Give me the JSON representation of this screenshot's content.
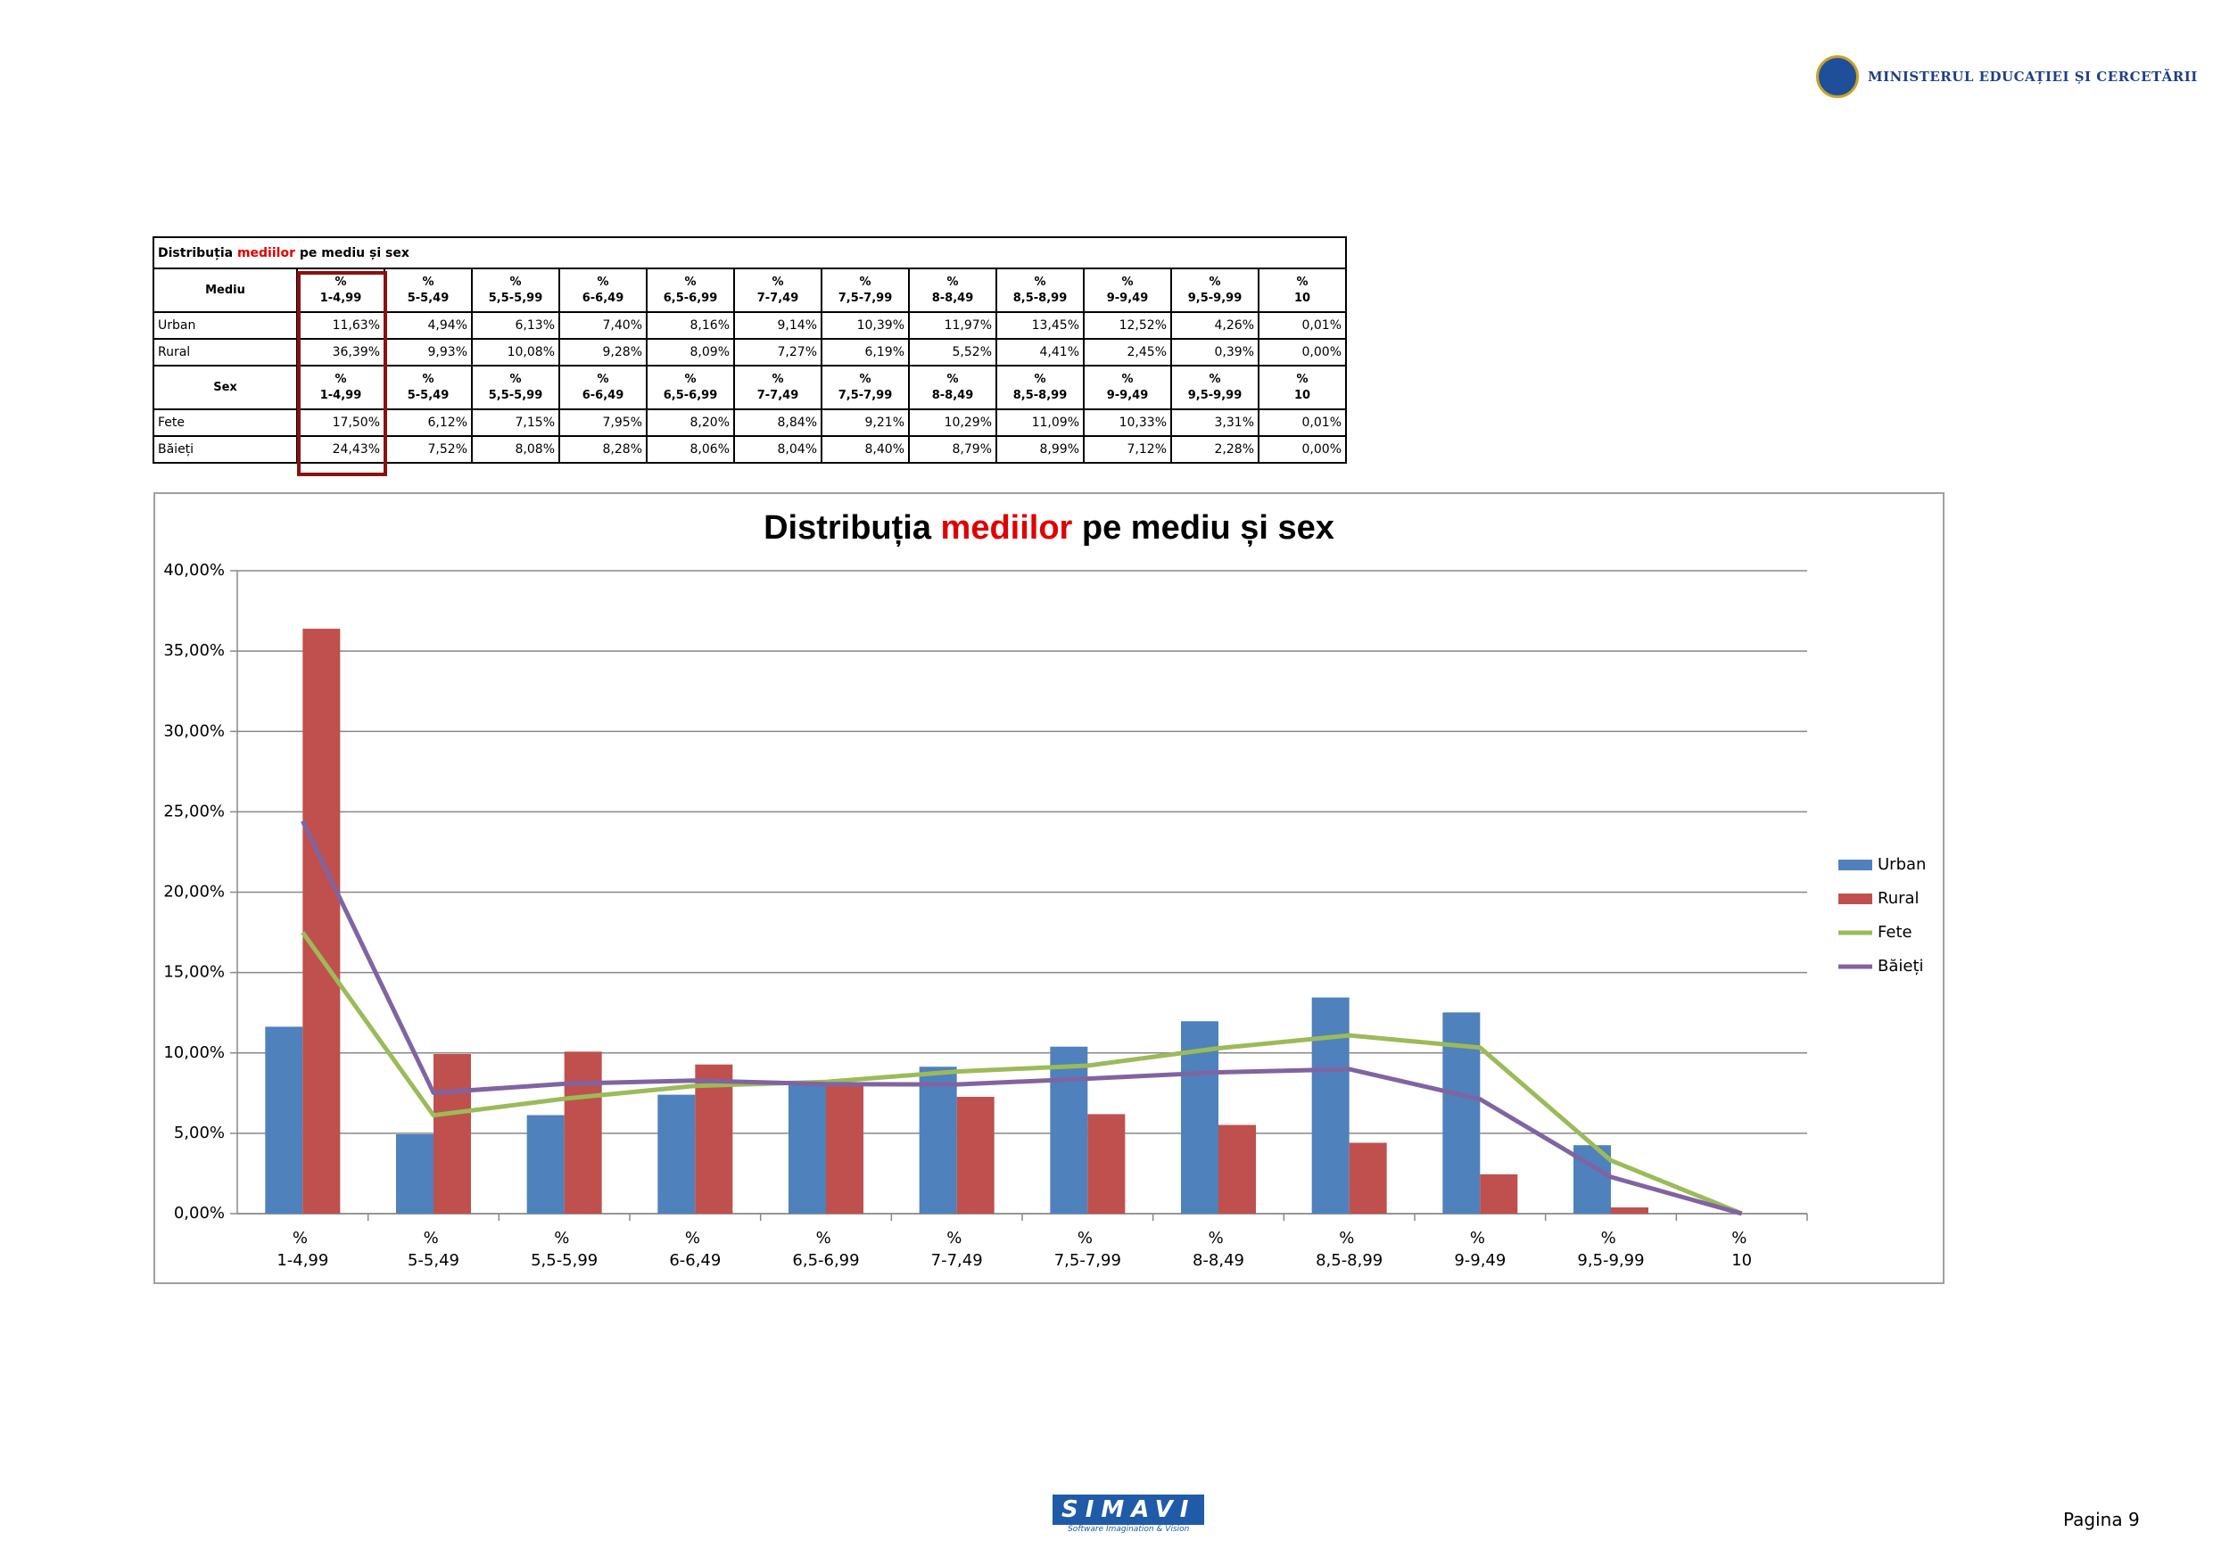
{
  "header": {
    "ministry": "MINISTERUL EDUCAȚIEI ȘI CERCETĂRII"
  },
  "table": {
    "title": {
      "before": "Distribuția",
      "highlight": "mediilor",
      "after": "pe mediu și sex"
    },
    "groups": [
      {
        "label": "Mediu",
        "rows": [
          [
            "11,63%",
            "4,94%",
            "6,13%",
            "7,40%",
            "8,16%",
            "9,14%",
            "10,39%",
            "11,97%",
            "13,45%",
            "12,52%",
            "4,26%",
            "0,01%"
          ],
          [
            "36,39%",
            "9,93%",
            "10,08%",
            "9,28%",
            "8,09%",
            "7,27%",
            "6,19%",
            "5,52%",
            "4,41%",
            "2,45%",
            "0,39%",
            "0,00%"
          ]
        ]
      },
      {
        "label": "Sex",
        "rows": [
          [
            "17,50%",
            "6,12%",
            "7,15%",
            "7,95%",
            "8,20%",
            "8,84%",
            "9,21%",
            "10,29%",
            "11,09%",
            "10,33%",
            "3,31%",
            "0,01%"
          ],
          [
            "24,43%",
            "7,52%",
            "8,08%",
            "8,28%",
            "8,06%",
            "8,04%",
            "8,40%",
            "8,79%",
            "8,99%",
            "7,12%",
            "2,28%",
            "0,00%"
          ]
        ]
      }
    ]
  },
  "chart_data": {
    "type": "bar",
    "title": {
      "before": "Distribuția",
      "highlight": "mediilor",
      "after": "pe mediu și sex"
    },
    "categories": [
      "% 1-4,99",
      "% 5-5,49",
      "% 5,5-5,99",
      "% 6-6,49",
      "% 6,5-6,99",
      "% 7-7,49",
      "% 7,5-7,99",
      "% 8-8,49",
      "% 8,5-8,99",
      "% 9-9,49",
      "% 9,5-9,99",
      "% 10"
    ],
    "series": [
      {
        "name": "Urban",
        "color": "#4f81bd",
        "type": "bar",
        "values": [
          11.63,
          4.94,
          6.13,
          7.4,
          8.16,
          9.14,
          10.39,
          11.97,
          13.45,
          12.52,
          4.26,
          0.01
        ]
      },
      {
        "name": "Rural",
        "color": "#c0504d",
        "type": "bar",
        "values": [
          36.39,
          9.93,
          10.08,
          9.28,
          8.09,
          7.27,
          6.19,
          5.52,
          4.41,
          2.45,
          0.39,
          0.0
        ]
      },
      {
        "name": "Fete",
        "color": "#9bbb59",
        "type": "line",
        "values": [
          17.5,
          6.12,
          7.15,
          7.95,
          8.2,
          8.84,
          9.21,
          10.29,
          11.09,
          10.33,
          3.31,
          0.01
        ]
      },
      {
        "name": "Băieți",
        "color": "#8064a2",
        "type": "line",
        "values": [
          24.43,
          7.52,
          8.08,
          8.28,
          8.06,
          8.04,
          8.4,
          8.79,
          8.99,
          7.12,
          2.28,
          0.0
        ]
      }
    ],
    "ylim": [
      0,
      40
    ],
    "yticks": [
      {
        "value": 0,
        "label": "0,00%"
      },
      {
        "value": 5,
        "label": "5,00%"
      },
      {
        "value": 10,
        "label": "10,00%"
      },
      {
        "value": 15,
        "label": "15,00%"
      },
      {
        "value": 20,
        "label": "20,00%"
      },
      {
        "value": 25,
        "label": "25,00%"
      },
      {
        "value": 30,
        "label": "30,00%"
      },
      {
        "value": 35,
        "label": "35,00%"
      },
      {
        "value": 40,
        "label": "40,00%"
      }
    ],
    "grid": true,
    "legend": "right"
  },
  "footer": {
    "brand": "SIMAVI",
    "tagline": "Software Imagination & Vision",
    "page": "Pagina 9"
  }
}
